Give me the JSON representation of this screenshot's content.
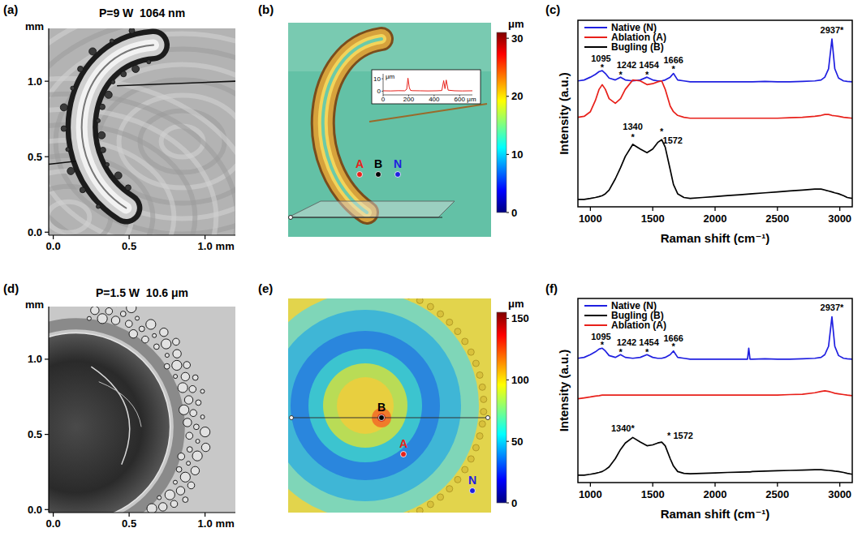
{
  "chart_data": [
    {
      "type": "image",
      "panel_label": "(a)",
      "title": "P=9 W  1064 nm",
      "x_label": "mm",
      "y_label": "mm",
      "xlim": [
        -0.03,
        1.2
      ],
      "ylim": [
        -0.02,
        1.35
      ],
      "xticks": [
        {
          "value": 0,
          "label": "0.0"
        },
        {
          "value": 0.5,
          "label": "0.5"
        },
        {
          "value": 1,
          "label": "1.0"
        }
      ],
      "yticks": [
        {
          "value": 0,
          "label": "0.0"
        },
        {
          "value": 0.5,
          "label": "0.5"
        },
        {
          "value": 1,
          "label": "1.0"
        }
      ]
    },
    {
      "type": "image",
      "panel_label": "(b)",
      "colorbar": {
        "label": "μm",
        "range": [
          0,
          31
        ],
        "ticks": [
          0,
          10,
          20,
          30
        ]
      },
      "points": [
        {
          "label": "A",
          "color": "#e8201a"
        },
        {
          "label": "B",
          "color": "#000000"
        },
        {
          "label": "N",
          "color": "#1f1fe0"
        }
      ],
      "inset": {
        "type": "line",
        "x_label": "μm",
        "y_label": "μm",
        "xlim": [
          0,
          700
        ],
        "ylim": [
          -3,
          14
        ],
        "xticks": [
          0,
          200,
          400,
          600
        ],
        "yticks": [
          0,
          10
        ],
        "color": "#e8201a",
        "x": [
          0,
          60,
          120,
          170,
          185,
          195,
          205,
          215,
          230,
          290,
          350,
          420,
          460,
          475,
          485,
          495,
          510,
          560,
          620,
          700
        ],
        "values": [
          0.3,
          0.2,
          0.4,
          0.3,
          1.5,
          10.5,
          3.0,
          0.6,
          0.4,
          0.3,
          0.2,
          0.3,
          0.5,
          8.5,
          2.0,
          9.0,
          0.8,
          0.3,
          0.2,
          0.3
        ]
      }
    },
    {
      "type": "line",
      "panel_label": "(c)",
      "x_label": "Raman shift (cm⁻¹)",
      "y_label": "Intensity (a.u.)",
      "xlim": [
        900,
        3100
      ],
      "ylim": [
        0,
        10
      ],
      "xticks": [
        1000,
        1500,
        2000,
        2500,
        3000
      ],
      "tick_labels": "x",
      "legend": "upper left",
      "x": [
        900,
        950,
        1000,
        1040,
        1070,
        1095,
        1120,
        1150,
        1200,
        1242,
        1280,
        1340,
        1400,
        1454,
        1500,
        1540,
        1572,
        1600,
        1640,
        1666,
        1700,
        1750,
        1800,
        1900,
        2000,
        2100,
        2200,
        2300,
        2400,
        2500,
        2600,
        2700,
        2800,
        2850,
        2880,
        2910,
        2937,
        2960,
        2990,
        3030,
        3060,
        3100
      ],
      "series": [
        {
          "name": "Native (N)",
          "color": "#1f1fe0",
          "values": [
            6.75,
            6.8,
            6.95,
            7.1,
            7.25,
            7.3,
            7.15,
            6.9,
            6.8,
            6.95,
            6.8,
            6.75,
            6.8,
            6.95,
            6.8,
            6.75,
            6.75,
            6.8,
            6.95,
            7.15,
            6.8,
            6.75,
            6.7,
            6.7,
            6.7,
            6.7,
            6.7,
            6.7,
            6.72,
            6.7,
            6.7,
            6.72,
            6.75,
            6.8,
            6.95,
            7.4,
            9.0,
            7.4,
            6.9,
            6.75,
            6.72,
            6.7
          ]
        },
        {
          "name": "Ablation (A)",
          "color": "#e8201a",
          "values": [
            4.8,
            4.85,
            5.1,
            5.7,
            6.3,
            6.55,
            6.3,
            5.8,
            5.55,
            5.8,
            6.3,
            6.8,
            6.75,
            6.55,
            6.6,
            6.7,
            6.75,
            6.3,
            5.4,
            5.1,
            4.9,
            4.8,
            4.75,
            4.75,
            4.75,
            4.75,
            4.75,
            4.75,
            4.75,
            4.75,
            4.78,
            4.8,
            4.85,
            4.9,
            4.95,
            4.95,
            4.9,
            4.88,
            4.85,
            4.8,
            4.78,
            4.75
          ]
        },
        {
          "name": "Bugling (B)",
          "color": "#000000",
          "values": [
            0.4,
            0.4,
            0.45,
            0.5,
            0.55,
            0.6,
            0.7,
            0.9,
            1.5,
            2.1,
            2.7,
            3.35,
            3.1,
            2.9,
            3.1,
            3.45,
            3.6,
            3.2,
            2.0,
            1.2,
            0.7,
            0.5,
            0.45,
            0.5,
            0.55,
            0.6,
            0.65,
            0.7,
            0.75,
            0.8,
            0.85,
            0.9,
            0.95,
            0.95,
            0.9,
            0.85,
            0.8,
            0.75,
            0.7,
            0.6,
            0.5,
            0.45
          ]
        }
      ],
      "annotations": [
        {
          "text": "1095",
          "x": 1085,
          "y": 7.95
        },
        {
          "text": "*",
          "x": 1095,
          "y": 7.5
        },
        {
          "text": "1242",
          "x": 1290,
          "y": 7.62
        },
        {
          "text": "*",
          "x": 1242,
          "y": 7.1
        },
        {
          "text": "1454",
          "x": 1470,
          "y": 7.62
        },
        {
          "text": "*",
          "x": 1454,
          "y": 7.1
        },
        {
          "text": "1666",
          "x": 1666,
          "y": 7.85
        },
        {
          "text": "*",
          "x": 1666,
          "y": 7.38
        },
        {
          "text": "2937*",
          "x": 2937,
          "y": 9.5
        },
        {
          "text": "1340",
          "x": 1340,
          "y": 4.3
        },
        {
          "text": "*",
          "x": 1340,
          "y": 3.75
        },
        {
          "text": "*",
          "x": 1572,
          "y": 4.05
        },
        {
          "text": "1572",
          "x": 1660,
          "y": 3.55
        }
      ]
    },
    {
      "type": "image",
      "panel_label": "(d)",
      "title": "P=1.5 W  10.6 μm",
      "x_label": "mm",
      "y_label": "mm",
      "xlim": [
        -0.03,
        1.2
      ],
      "ylim": [
        -0.02,
        1.35
      ],
      "xticks": [
        {
          "value": 0,
          "label": "0.0"
        },
        {
          "value": 0.5,
          "label": "0.5"
        },
        {
          "value": 1,
          "label": "1.0"
        }
      ],
      "yticks": [
        {
          "value": 0,
          "label": "0.0"
        },
        {
          "value": 0.5,
          "label": "0.5"
        },
        {
          "value": 1,
          "label": "1.0"
        }
      ]
    },
    {
      "type": "image",
      "panel_label": "(e)",
      "colorbar": {
        "label": "μm",
        "range": [
          0,
          155
        ],
        "ticks": [
          0,
          50,
          100,
          150
        ]
      },
      "points": [
        {
          "label": "A",
          "color": "#e8201a"
        },
        {
          "label": "B",
          "color": "#000000"
        },
        {
          "label": "N",
          "color": "#1f1fe0"
        }
      ]
    },
    {
      "type": "line",
      "panel_label": "(f)",
      "x_label": "Raman shift (cm⁻¹)",
      "y_label": "Intensity (a.u.)",
      "xlim": [
        900,
        3100
      ],
      "ylim": [
        0,
        10
      ],
      "xticks": [
        1000,
        1500,
        2000,
        2500,
        3000
      ],
      "tick_labels": "x",
      "legend": "upper left",
      "x": [
        900,
        950,
        1000,
        1040,
        1070,
        1095,
        1120,
        1150,
        1200,
        1242,
        1280,
        1340,
        1400,
        1454,
        1500,
        1540,
        1572,
        1600,
        1640,
        1666,
        1700,
        1750,
        1800,
        1900,
        2000,
        2100,
        2200,
        2260,
        2270,
        2280,
        2300,
        2400,
        2500,
        2600,
        2700,
        2800,
        2850,
        2880,
        2910,
        2937,
        2960,
        2990,
        3030,
        3060,
        3100
      ],
      "series": [
        {
          "name": "Native (N)",
          "color": "#1f1fe0",
          "values": [
            6.75,
            6.8,
            6.95,
            7.1,
            7.25,
            7.3,
            7.15,
            6.9,
            6.8,
            6.95,
            6.8,
            6.75,
            6.8,
            6.95,
            6.8,
            6.75,
            6.75,
            6.8,
            6.95,
            7.15,
            6.8,
            6.75,
            6.7,
            6.7,
            6.7,
            6.7,
            6.7,
            6.7,
            7.3,
            6.7,
            6.7,
            6.72,
            6.7,
            6.7,
            6.72,
            6.75,
            6.8,
            6.95,
            7.4,
            9.0,
            7.4,
            6.9,
            6.75,
            6.72,
            6.7
          ]
        },
        {
          "name": "Bugling (B)",
          "color": "#000000",
          "values": [
            0.4,
            0.4,
            0.45,
            0.5,
            0.55,
            0.6,
            0.7,
            0.85,
            1.3,
            1.8,
            2.15,
            2.45,
            2.2,
            2.0,
            2.05,
            2.15,
            2.2,
            2.0,
            1.3,
            0.9,
            0.6,
            0.5,
            0.48,
            0.5,
            0.52,
            0.55,
            0.57,
            0.58,
            0.58,
            0.58,
            0.6,
            0.62,
            0.64,
            0.66,
            0.68,
            0.7,
            0.7,
            0.68,
            0.66,
            0.64,
            0.62,
            0.6,
            0.55,
            0.5,
            0.45
          ]
        },
        {
          "name": "Ablation (A)",
          "color": "#e8201a",
          "values": [
            4.55,
            4.6,
            4.65,
            4.7,
            4.72,
            4.75,
            4.75,
            4.75,
            4.75,
            4.75,
            4.75,
            4.75,
            4.75,
            4.75,
            4.75,
            4.75,
            4.75,
            4.75,
            4.75,
            4.75,
            4.75,
            4.75,
            4.75,
            4.75,
            4.75,
            4.75,
            4.75,
            4.75,
            4.75,
            4.75,
            4.75,
            4.75,
            4.75,
            4.78,
            4.8,
            4.88,
            4.95,
            4.98,
            4.95,
            4.9,
            4.85,
            4.82,
            4.78,
            4.75,
            4.72
          ]
        }
      ],
      "annotations": [
        {
          "text": "1095",
          "x": 1085,
          "y": 7.95
        },
        {
          "text": "*",
          "x": 1095,
          "y": 7.5
        },
        {
          "text": "1242",
          "x": 1290,
          "y": 7.62
        },
        {
          "text": "*",
          "x": 1242,
          "y": 7.1
        },
        {
          "text": "1454",
          "x": 1470,
          "y": 7.62
        },
        {
          "text": "*",
          "x": 1454,
          "y": 7.1
        },
        {
          "text": "1666",
          "x": 1666,
          "y": 7.85
        },
        {
          "text": "*",
          "x": 1666,
          "y": 7.38
        },
        {
          "text": "2937*",
          "x": 2937,
          "y": 9.5
        },
        {
          "text": "1340*",
          "x": 1260,
          "y": 2.95
        },
        {
          "text": "* 1572",
          "x": 1720,
          "y": 2.55
        }
      ]
    }
  ]
}
